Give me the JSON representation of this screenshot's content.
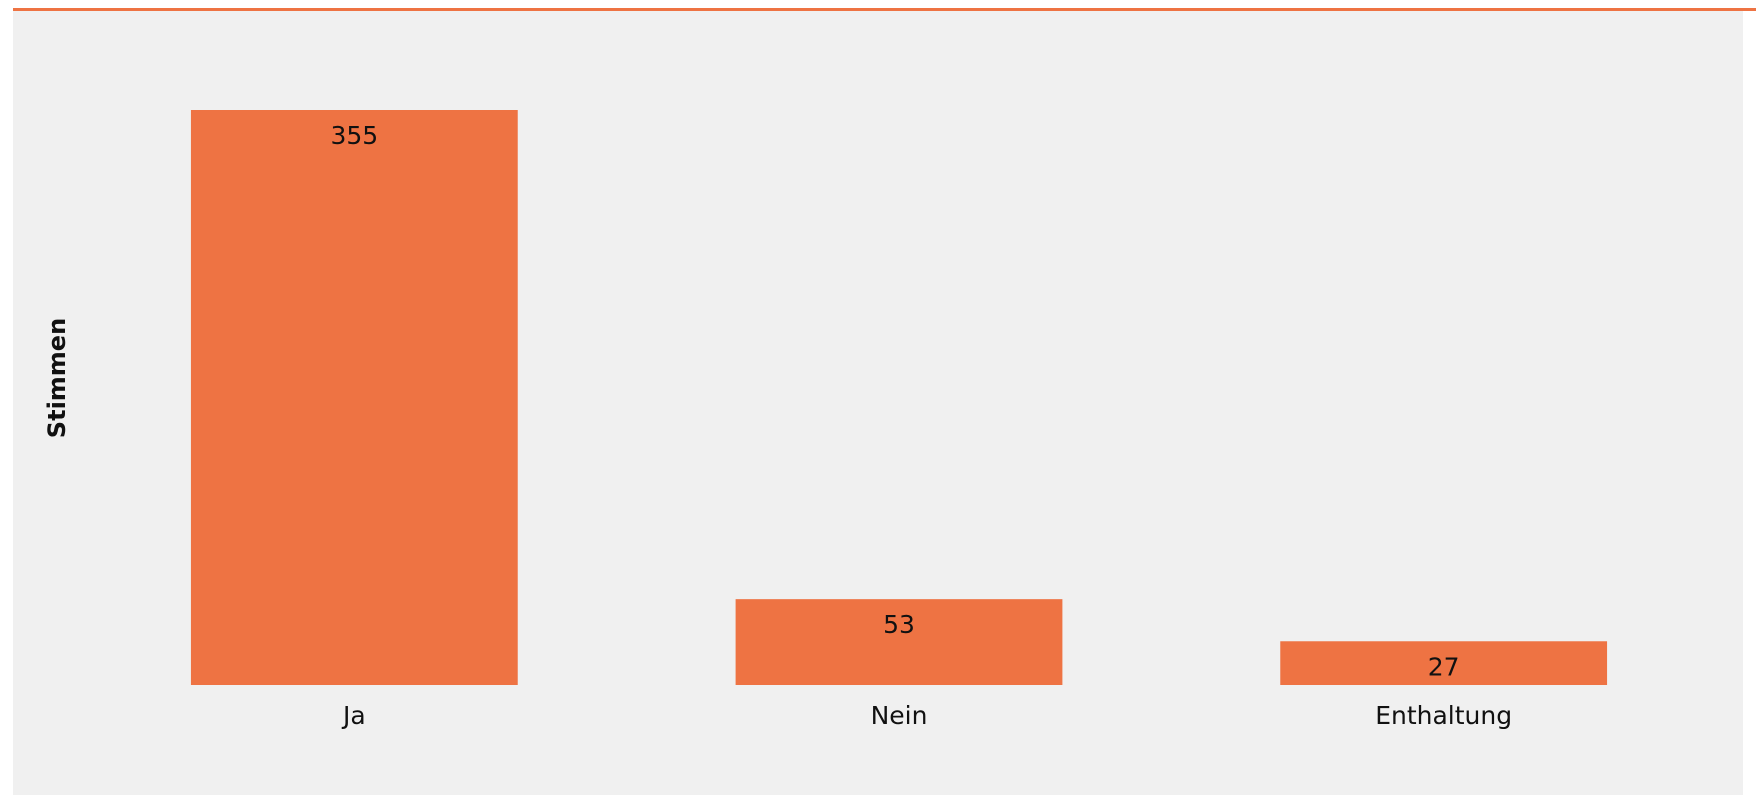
{
  "chart_data": {
    "type": "bar",
    "y_label": "Stimmen",
    "categories": [
      "Ja",
      "Nein",
      "Enthaltung"
    ],
    "values": [
      355,
      53,
      27
    ],
    "color": "#ee7343"
  }
}
